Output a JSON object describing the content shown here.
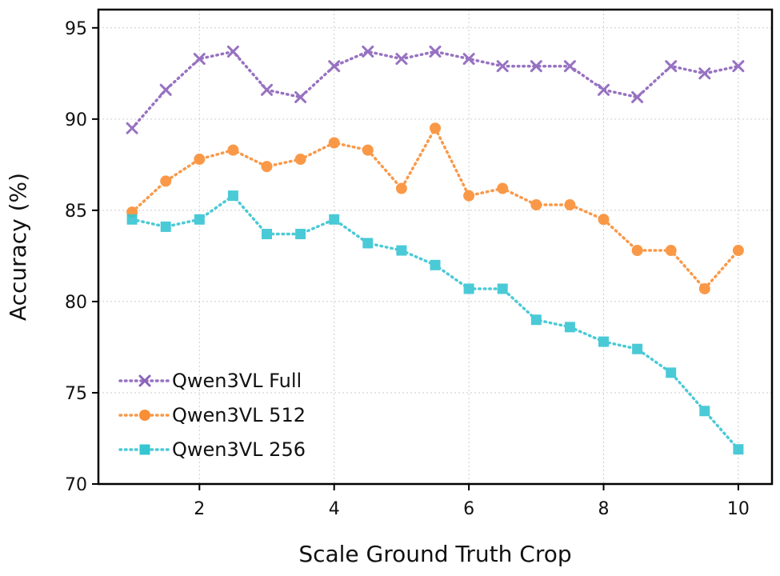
{
  "chart_data": {
    "type": "line",
    "title": "",
    "xlabel": "Scale Ground Truth Crop",
    "ylabel": "Accuracy (%)",
    "xlim": [
      0.5,
      10.5
    ],
    "ylim": [
      70,
      96
    ],
    "xticks": [
      2,
      4,
      6,
      8,
      10
    ],
    "xtick_labels": [
      "2",
      "4",
      "6",
      "8",
      "10"
    ],
    "yticks": [
      70,
      75,
      80,
      85,
      90,
      95
    ],
    "ytick_labels": [
      "70",
      "75",
      "80",
      "85",
      "90",
      "95"
    ],
    "grid": true,
    "legend_position": "lower-left",
    "x": [
      1,
      1.5,
      2,
      2.5,
      3,
      3.5,
      4,
      4.5,
      5,
      5.5,
      6,
      6.5,
      7,
      7.5,
      8,
      8.5,
      9,
      9.5,
      10
    ],
    "series": [
      {
        "name": "Qwen3VL Full",
        "color": "#8c63bb",
        "marker": "x",
        "values": [
          89.5,
          91.6,
          93.3,
          93.7,
          91.6,
          91.2,
          92.9,
          93.7,
          93.3,
          93.7,
          93.3,
          92.9,
          92.9,
          92.9,
          91.6,
          91.2,
          92.9,
          92.5,
          92.9
        ]
      },
      {
        "name": "Qwen3VL 512",
        "color": "#f98e35",
        "marker": "circle",
        "values": [
          84.9,
          86.6,
          87.8,
          88.3,
          87.4,
          87.8,
          88.7,
          88.3,
          86.2,
          89.5,
          85.8,
          86.2,
          85.3,
          85.3,
          84.5,
          82.8,
          82.8,
          80.7,
          82.8
        ]
      },
      {
        "name": "Qwen3VL 256",
        "color": "#37c5d2",
        "marker": "square",
        "values": [
          84.5,
          84.1,
          84.5,
          85.8,
          83.7,
          83.7,
          84.5,
          83.2,
          82.8,
          82.0,
          80.7,
          80.7,
          79.0,
          78.6,
          77.8,
          77.4,
          76.1,
          74.0,
          71.9
        ]
      }
    ]
  }
}
